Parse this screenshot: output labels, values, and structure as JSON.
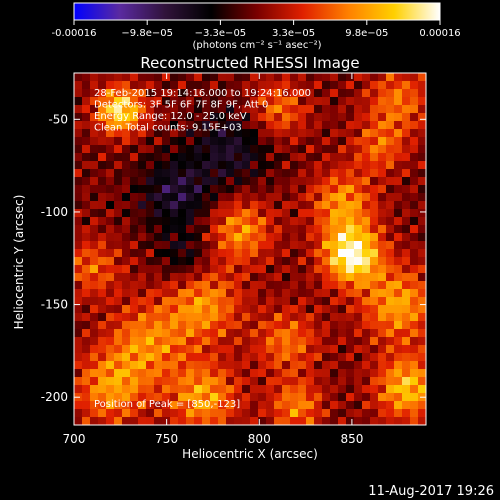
{
  "colors": {
    "background": "#000000",
    "foreground": "#ffffff"
  },
  "colorbar": {
    "ticks": [
      "-0.00016",
      "−9.8e−05",
      "−3.3e−05",
      "3.3e−05",
      "9.8e−05",
      "0.00016"
    ],
    "unit_label": "(photons cm⁻² s⁻¹ asec⁻²)",
    "range": [
      -0.00016,
      0.00016
    ],
    "colormap": [
      "#0000ff",
      "#5a2aa0",
      "#30123a",
      "#000000",
      "#7a0000",
      "#e02000",
      "#ff8000",
      "#ffd000",
      "#ffffff"
    ]
  },
  "chart_data": {
    "type": "heatmap",
    "title": "Reconstructed RHESSI Image",
    "xlabel": "Heliocentric X (arcsec)",
    "ylabel": "Heliocentric Y (arcsec)",
    "xlim": [
      700,
      890
    ],
    "ylim": [
      -215,
      -25
    ],
    "x_ticks": [
      700,
      750,
      800,
      850
    ],
    "y_ticks": [
      -50,
      -100,
      -150,
      -200
    ],
    "annotations": [
      "28-Feb-2015 19:14:16.000 to 19:24:16.000",
      "Detectors: 3F 5F 6F 7F 8F 9F, Att 0",
      "Energy Range: 12.0 - 25.0 keV",
      "Clean     Total counts: 9.15E+03"
    ],
    "peak_label": "Position of Peak = [850,-123]",
    "peak": {
      "x": 850,
      "y": -123
    },
    "sources": [
      {
        "x": 850,
        "y": -123,
        "amp": 1.0,
        "sigma": 11
      },
      {
        "x": 845,
        "y": -95,
        "amp": 0.55,
        "sigma": 12
      },
      {
        "x": 875,
        "y": -150,
        "amp": 0.6,
        "sigma": 14
      },
      {
        "x": 880,
        "y": -195,
        "amp": 0.7,
        "sigma": 12
      },
      {
        "x": 725,
        "y": -45,
        "amp": 0.85,
        "sigma": 9
      },
      {
        "x": 790,
        "y": -110,
        "amp": 0.55,
        "sigma": 12
      },
      {
        "x": 770,
        "y": -150,
        "amp": 0.55,
        "sigma": 14
      },
      {
        "x": 740,
        "y": -170,
        "amp": 0.5,
        "sigma": 15
      },
      {
        "x": 770,
        "y": -200,
        "amp": 0.6,
        "sigma": 13
      },
      {
        "x": 720,
        "y": -195,
        "amp": 0.55,
        "sigma": 14
      },
      {
        "x": 815,
        "y": -170,
        "amp": 0.45,
        "sigma": 12
      },
      {
        "x": 820,
        "y": -205,
        "amp": 0.5,
        "sigma": 10
      },
      {
        "x": 810,
        "y": -45,
        "amp": 0.45,
        "sigma": 11
      },
      {
        "x": 875,
        "y": -40,
        "amp": 0.45,
        "sigma": 12
      },
      {
        "x": 865,
        "y": -65,
        "amp": 0.4,
        "sigma": 10
      },
      {
        "x": 710,
        "y": -130,
        "amp": 0.4,
        "sigma": 11
      },
      {
        "x": 755,
        "y": -90,
        "amp": -0.45,
        "sigma": 14
      },
      {
        "x": 785,
        "y": -65,
        "amp": -0.4,
        "sigma": 15
      },
      {
        "x": 760,
        "y": -125,
        "amp": -0.3,
        "sigma": 10
      }
    ]
  },
  "timestamp": "11-Aug-2017 19:26"
}
